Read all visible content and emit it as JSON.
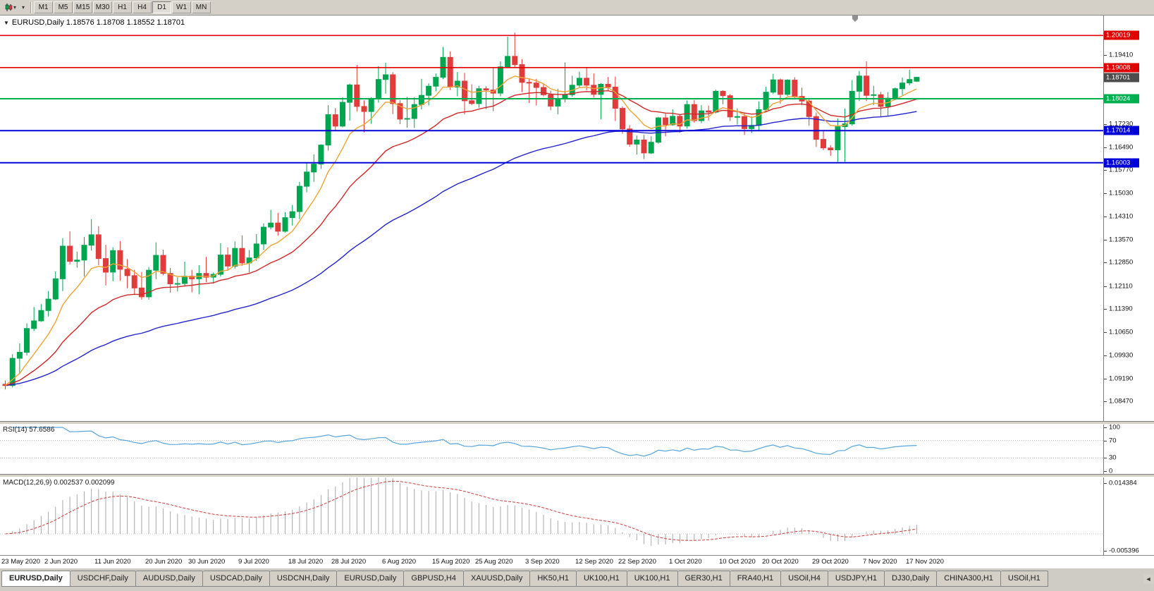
{
  "toolbar": {
    "caret_icon": "▾",
    "timeframes": [
      "M1",
      "M5",
      "M15",
      "M30",
      "H1",
      "H4",
      "D1",
      "W1",
      "MN"
    ],
    "active_timeframe": "D1"
  },
  "chart": {
    "menu_icon": "▼",
    "title_line": "EURUSD,Daily 1.18576 1.18708 1.18552 1.18701"
  },
  "chart_data": {
    "type": "candlestick",
    "symbol": "EURUSD",
    "period": "Daily",
    "ohlc_display": [
      "1.18576",
      "1.18708",
      "1.18552",
      "1.18701"
    ],
    "price_range": {
      "top": 1.2065,
      "bottom": 1.0785
    },
    "price_axis_ticks": [
      "1.19410",
      "1.17230",
      "1.16490",
      "1.15770",
      "1.15030",
      "1.14310",
      "1.13570",
      "1.12850",
      "1.12110",
      "1.11390",
      "1.10650",
      "1.09930",
      "1.09190",
      "1.08470"
    ],
    "horizontal_lines": [
      {
        "price": 1.20019,
        "label": "1.20019",
        "color": "#e00000"
      },
      {
        "price": 1.19008,
        "label": "1.19008",
        "color": "#e00000"
      },
      {
        "price": 1.18024,
        "label": "1.18024",
        "color": "#00b050"
      },
      {
        "price": 1.17014,
        "label": "1.17014",
        "color": "#0000d8"
      },
      {
        "price": 1.16003,
        "label": "1.16003",
        "color": "#0000d8"
      }
    ],
    "current_price": {
      "price": 1.18701,
      "label": "1.18701",
      "color": "#4d4d4d"
    },
    "candle_up_color": "#00a550",
    "candle_down_color": "#e03c3c",
    "moving_averages": [
      {
        "name": "fast",
        "period": 8,
        "color": "#efa334"
      },
      {
        "name": "mid",
        "period": 21,
        "color": "#d02828"
      },
      {
        "name": "slow",
        "period": 55,
        "color": "#2424cc"
      }
    ],
    "x_labels": [
      [
        0,
        "23 May 2020"
      ],
      [
        6,
        "2 Jun 2020"
      ],
      [
        13,
        "11 Jun 2020"
      ],
      [
        20,
        "20 Jun 2020"
      ],
      [
        26,
        "30 Jun 2020"
      ],
      [
        33,
        "9 Jul 2020"
      ],
      [
        40,
        "18 Jul 2020"
      ],
      [
        46,
        "28 Jul 2020"
      ],
      [
        53,
        "6 Aug 2020"
      ],
      [
        60,
        "15 Aug 2020"
      ],
      [
        66,
        "25 Aug 2020"
      ],
      [
        73,
        "3 Sep 2020"
      ],
      [
        80,
        "12 Sep 2020"
      ],
      [
        86,
        "22 Sep 2020"
      ],
      [
        93,
        "1 Oct 2020"
      ],
      [
        100,
        "10 Oct 2020"
      ],
      [
        106,
        "20 Oct 2020"
      ],
      [
        113,
        "29 Oct 2020"
      ],
      [
        120,
        "7 Nov 2020"
      ],
      [
        126,
        "17 Nov 2020"
      ]
    ],
    "ohlc": [
      [
        1.0901,
        1.0913,
        1.0885,
        1.0897
      ],
      [
        1.0897,
        1.0996,
        1.0891,
        1.0983
      ],
      [
        1.0983,
        1.103,
        1.0934,
        1.1002
      ],
      [
        1.1002,
        1.1093,
        1.0992,
        1.1077
      ],
      [
        1.1077,
        1.1145,
        1.1069,
        1.1101
      ],
      [
        1.1101,
        1.1154,
        1.1098,
        1.1134
      ],
      [
        1.1134,
        1.1195,
        1.1115,
        1.117
      ],
      [
        1.117,
        1.1257,
        1.1167,
        1.1234
      ],
      [
        1.1234,
        1.1362,
        1.1195,
        1.1337
      ],
      [
        1.1337,
        1.1384,
        1.1279,
        1.1289
      ],
      [
        1.1289,
        1.132,
        1.1269,
        1.1293
      ],
      [
        1.1293,
        1.1366,
        1.1241,
        1.134
      ],
      [
        1.134,
        1.1422,
        1.1323,
        1.1373
      ],
      [
        1.1373,
        1.14,
        1.1277,
        1.1298
      ],
      [
        1.1298,
        1.1341,
        1.1213,
        1.1255
      ],
      [
        1.1255,
        1.1333,
        1.1226,
        1.1323
      ],
      [
        1.1323,
        1.1353,
        1.1228,
        1.1264
      ],
      [
        1.1264,
        1.1296,
        1.1204,
        1.1244
      ],
      [
        1.1244,
        1.1262,
        1.1184,
        1.1205
      ],
      [
        1.1205,
        1.1255,
        1.1168,
        1.1177
      ],
      [
        1.1177,
        1.1271,
        1.1168,
        1.1261
      ],
      [
        1.1261,
        1.1349,
        1.1233,
        1.1308
      ],
      [
        1.1308,
        1.1326,
        1.1245,
        1.1251
      ],
      [
        1.1251,
        1.1268,
        1.119,
        1.1218
      ],
      [
        1.1218,
        1.1239,
        1.1194,
        1.1219
      ],
      [
        1.1219,
        1.1288,
        1.1209,
        1.1242
      ],
      [
        1.1242,
        1.1262,
        1.1191,
        1.1234
      ],
      [
        1.1234,
        1.1277,
        1.1185,
        1.1251
      ],
      [
        1.1251,
        1.1303,
        1.1223,
        1.1239
      ],
      [
        1.1239,
        1.1254,
        1.1219,
        1.1248
      ],
      [
        1.1248,
        1.1346,
        1.1241,
        1.1309
      ],
      [
        1.1309,
        1.1333,
        1.1259,
        1.1274
      ],
      [
        1.1274,
        1.1352,
        1.1266,
        1.133
      ],
      [
        1.133,
        1.1371,
        1.1275,
        1.1284
      ],
      [
        1.1284,
        1.1325,
        1.1254,
        1.13
      ],
      [
        1.13,
        1.1375,
        1.1291,
        1.1344
      ],
      [
        1.1344,
        1.1409,
        1.1325,
        1.1397
      ],
      [
        1.1397,
        1.1452,
        1.139,
        1.141
      ],
      [
        1.141,
        1.1442,
        1.137,
        1.1384
      ],
      [
        1.1384,
        1.1444,
        1.138,
        1.1427
      ],
      [
        1.1427,
        1.1467,
        1.1402,
        1.1446
      ],
      [
        1.1446,
        1.154,
        1.1422,
        1.1526
      ],
      [
        1.1526,
        1.1601,
        1.1507,
        1.1571
      ],
      [
        1.1571,
        1.1627,
        1.154,
        1.1596
      ],
      [
        1.1596,
        1.1658,
        1.1581,
        1.1656
      ],
      [
        1.1656,
        1.1782,
        1.1639,
        1.1752
      ],
      [
        1.1752,
        1.1773,
        1.17,
        1.1716
      ],
      [
        1.1716,
        1.1807,
        1.1712,
        1.1791
      ],
      [
        1.1791,
        1.185,
        1.1733,
        1.1846
      ],
      [
        1.1846,
        1.1909,
        1.1762,
        1.1778
      ],
      [
        1.1778,
        1.1797,
        1.1696,
        1.1762
      ],
      [
        1.1762,
        1.1807,
        1.1723,
        1.1803
      ],
      [
        1.1803,
        1.1905,
        1.179,
        1.1863
      ],
      [
        1.1863,
        1.1916,
        1.1818,
        1.1878
      ],
      [
        1.1878,
        1.1886,
        1.1754,
        1.1787
      ],
      [
        1.1787,
        1.1798,
        1.1722,
        1.1738
      ],
      [
        1.1738,
        1.1808,
        1.1711,
        1.174
      ],
      [
        1.174,
        1.1807,
        1.171,
        1.1784
      ],
      [
        1.1784,
        1.1865,
        1.1769,
        1.1813
      ],
      [
        1.1813,
        1.1851,
        1.1781,
        1.1842
      ],
      [
        1.1842,
        1.1882,
        1.1826,
        1.187
      ],
      [
        1.187,
        1.1966,
        1.1864,
        1.1933
      ],
      [
        1.1933,
        1.1952,
        1.183,
        1.1839
      ],
      [
        1.1839,
        1.1887,
        1.181,
        1.1858
      ],
      [
        1.1858,
        1.1884,
        1.1753,
        1.1796
      ],
      [
        1.1796,
        1.1848,
        1.1782,
        1.1787
      ],
      [
        1.1787,
        1.1843,
        1.1774,
        1.1834
      ],
      [
        1.1834,
        1.1842,
        1.177,
        1.183
      ],
      [
        1.183,
        1.19,
        1.1763,
        1.182
      ],
      [
        1.182,
        1.192,
        1.181,
        1.1903
      ],
      [
        1.1903,
        1.1998,
        1.1899,
        1.1936
      ],
      [
        1.1936,
        1.2011,
        1.1901,
        1.191
      ],
      [
        1.191,
        1.1927,
        1.1823,
        1.1854
      ],
      [
        1.1854,
        1.1865,
        1.1789,
        1.1852
      ],
      [
        1.1852,
        1.1865,
        1.1781,
        1.1838
      ],
      [
        1.1838,
        1.1848,
        1.181,
        1.1815
      ],
      [
        1.1815,
        1.1828,
        1.1766,
        1.1779
      ],
      [
        1.1779,
        1.1834,
        1.1753,
        1.1802
      ],
      [
        1.1802,
        1.1917,
        1.1791,
        1.1815
      ],
      [
        1.1815,
        1.1875,
        1.1809,
        1.1845
      ],
      [
        1.1845,
        1.1888,
        1.1839,
        1.1867
      ],
      [
        1.1867,
        1.19,
        1.1829,
        1.1845
      ],
      [
        1.1845,
        1.1882,
        1.1806,
        1.1816
      ],
      [
        1.1816,
        1.1852,
        1.1737,
        1.1848
      ],
      [
        1.1848,
        1.1871,
        1.1827,
        1.1839
      ],
      [
        1.1839,
        1.1872,
        1.1732,
        1.1772
      ],
      [
        1.1772,
        1.1778,
        1.1692,
        1.1707
      ],
      [
        1.1707,
        1.1719,
        1.1651,
        1.1659
      ],
      [
        1.1659,
        1.1686,
        1.1626,
        1.1672
      ],
      [
        1.1672,
        1.1688,
        1.1612,
        1.1631
      ],
      [
        1.1631,
        1.1684,
        1.1628,
        1.1665
      ],
      [
        1.1665,
        1.1745,
        1.1661,
        1.1742
      ],
      [
        1.1742,
        1.1755,
        1.1684,
        1.172
      ],
      [
        1.172,
        1.1769,
        1.1717,
        1.1747
      ],
      [
        1.1747,
        1.1752,
        1.1695,
        1.1716
      ],
      [
        1.1716,
        1.1797,
        1.1708,
        1.1784
      ],
      [
        1.1784,
        1.1798,
        1.1727,
        1.1733
      ],
      [
        1.1733,
        1.1782,
        1.1725,
        1.1764
      ],
      [
        1.1764,
        1.1781,
        1.1733,
        1.176
      ],
      [
        1.176,
        1.1831,
        1.1756,
        1.1826
      ],
      [
        1.1826,
        1.1829,
        1.1785,
        1.1812
      ],
      [
        1.1812,
        1.1817,
        1.1732,
        1.1745
      ],
      [
        1.1745,
        1.1772,
        1.1721,
        1.1746
      ],
      [
        1.1746,
        1.1758,
        1.1688,
        1.1708
      ],
      [
        1.1708,
        1.1747,
        1.1694,
        1.1718
      ],
      [
        1.1718,
        1.1794,
        1.1703,
        1.1768
      ],
      [
        1.1768,
        1.184,
        1.176,
        1.1823
      ],
      [
        1.1823,
        1.1881,
        1.1817,
        1.1862
      ],
      [
        1.1862,
        1.1866,
        1.1787,
        1.1816
      ],
      [
        1.1816,
        1.1864,
        1.1811,
        1.1861
      ],
      [
        1.1861,
        1.187,
        1.1801,
        1.181
      ],
      [
        1.181,
        1.1837,
        1.1782,
        1.1795
      ],
      [
        1.1795,
        1.18,
        1.1717,
        1.1746
      ],
      [
        1.1746,
        1.1759,
        1.165,
        1.1674
      ],
      [
        1.1674,
        1.1704,
        1.164,
        1.1647
      ],
      [
        1.1647,
        1.1656,
        1.1622,
        1.1641
      ],
      [
        1.1641,
        1.174,
        1.1603,
        1.1714
      ],
      [
        1.1714,
        1.1771,
        1.1603,
        1.1723
      ],
      [
        1.1723,
        1.1861,
        1.1717,
        1.1826
      ],
      [
        1.1826,
        1.189,
        1.1795,
        1.1874
      ],
      [
        1.1874,
        1.192,
        1.1795,
        1.1813
      ],
      [
        1.1813,
        1.1843,
        1.1782,
        1.1815
      ],
      [
        1.1815,
        1.1824,
        1.1745,
        1.1778
      ],
      [
        1.1778,
        1.1823,
        1.1746,
        1.1804
      ],
      [
        1.1804,
        1.1838,
        1.1799,
        1.1834
      ],
      [
        1.1834,
        1.1869,
        1.1814,
        1.1852
      ],
      [
        1.1852,
        1.1894,
        1.1845,
        1.1863
      ],
      [
        1.18576,
        1.18708,
        1.18552,
        1.18701
      ]
    ],
    "rsi": {
      "title": "RSI(14) 57.6586",
      "period": 14,
      "current": 57.6586,
      "axis_ticks": [
        "100",
        "70",
        "30",
        "0"
      ],
      "levels": [
        70,
        30
      ],
      "color": "#56a5dc"
    },
    "macd": {
      "title": "MACD(12,26,9) 0.002537 0.002099",
      "fast": 12,
      "slow": 26,
      "signal": 9,
      "current_macd": 0.002537,
      "current_signal": 0.002099,
      "axis_max": 0.014384,
      "axis_min": -0.005396,
      "axis_labels": [
        "0.014384",
        "-0.005396"
      ],
      "hist_color": "#a8a8a8",
      "signal_color": "#cf3c3c"
    }
  },
  "tabs": {
    "active_index": 0,
    "scroll_left_icon": "◄",
    "labels": [
      "EURUSD,Daily",
      "USDCHF,Daily",
      "AUDUSD,Daily",
      "USDCAD,Daily",
      "USDCNH,Daily",
      "EURUSD,Daily",
      "GBPUSD,H4",
      "XAUUSD,Daily",
      "HK50,H1",
      "UK100,H1",
      "UK100,H1",
      "GER30,H1",
      "FRA40,H1",
      "USOil,H4",
      "USDJPY,H1",
      "DJ30,Daily",
      "CHINA300,H1",
      "USOil,H1"
    ]
  }
}
